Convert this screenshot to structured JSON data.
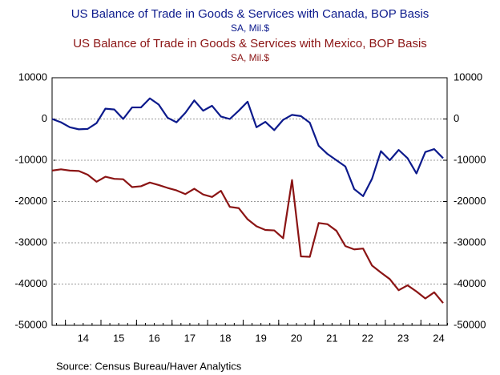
{
  "chart_data": {
    "type": "line",
    "categories": [
      null,
      null,
      null,
      "14",
      null,
      null,
      null,
      "15",
      null,
      null,
      null,
      "16",
      null,
      null,
      null,
      "17",
      null,
      null,
      null,
      "18",
      null,
      null,
      null,
      "19",
      null,
      null,
      null,
      "20",
      null,
      null,
      null,
      "21",
      null,
      null,
      null,
      "22",
      null,
      null,
      null,
      "23",
      null,
      null,
      null,
      "24",
      null
    ],
    "series": [
      {
        "name": "US Balance of Trade in Goods & Services with Canada, BOP Basis",
        "unit": "SA, Mil.$",
        "color": "#0c1a8c",
        "values": [
          0,
          -800,
          -2000,
          -2500,
          -2400,
          -1000,
          2500,
          2300,
          0,
          2800,
          2800,
          5000,
          3500,
          300,
          -800,
          1500,
          4500,
          2000,
          3200,
          600,
          0,
          2000,
          4200,
          -2000,
          -700,
          -2700,
          -200,
          1000,
          700,
          -900,
          -6500,
          -8500,
          -10000,
          -11500,
          -17000,
          -18700,
          -14500,
          -7800,
          -10000,
          -7500,
          -9500,
          -13200,
          -8000,
          -7300,
          -9500
        ]
      },
      {
        "name": "US Balance of Trade in Goods & Services with Mexico, BOP Basis",
        "unit": "SA, Mil.$",
        "color": "#8b1414",
        "values": [
          -12500,
          -12200,
          -12500,
          -12600,
          -13500,
          -15200,
          -14000,
          -14500,
          -14600,
          -16500,
          -16300,
          -15400,
          -16000,
          -16700,
          -17300,
          -18200,
          -16900,
          -18300,
          -18900,
          -17400,
          -21300,
          -21600,
          -24300,
          -26000,
          -26900,
          -27000,
          -28900,
          -14800,
          -33300,
          -33400,
          -25200,
          -25500,
          -27100,
          -30800,
          -31600,
          -31400,
          -35500,
          -37200,
          -38800,
          -41500,
          -40300,
          -41800,
          -43500,
          -42000,
          -44600
        ]
      }
    ],
    "ylim": [
      -50000,
      10000
    ],
    "yticks": [
      10000,
      0,
      -10000,
      -20000,
      -30000,
      -40000,
      -50000
    ],
    "y2lim": [
      -50000,
      10000
    ],
    "y2ticks": [
      10000,
      0,
      -10000,
      -20000,
      -30000,
      -40000,
      -50000
    ],
    "grid": true,
    "source": "Source:  Census Bureau/Haver Analytics"
  }
}
